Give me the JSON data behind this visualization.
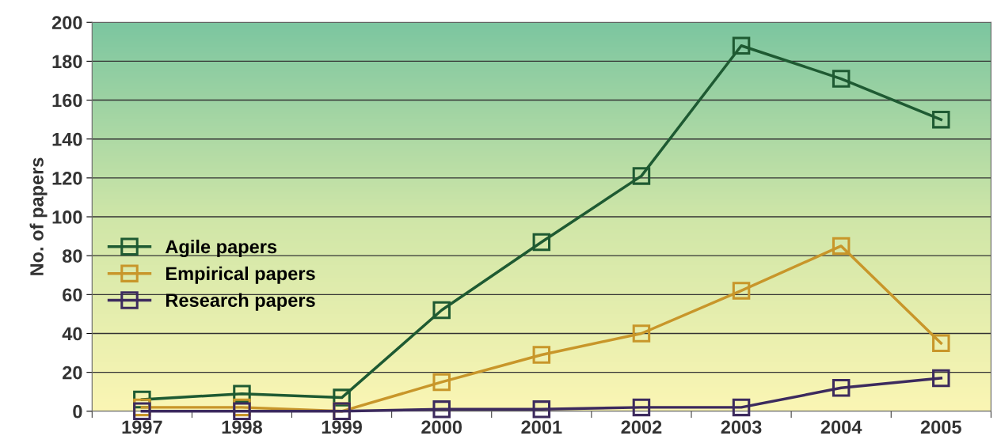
{
  "chart_data": {
    "type": "line",
    "ylabel": "No. of papers",
    "categories": [
      "1997",
      "1998",
      "1999",
      "2000",
      "2001",
      "2002",
      "2003",
      "2004",
      "2005"
    ],
    "series": [
      {
        "name": "Agile papers",
        "color": "#1e5a32",
        "values": [
          6,
          9,
          7,
          52,
          87,
          121,
          188,
          171,
          150
        ]
      },
      {
        "name": "Empirical papers",
        "color": "#c8962a",
        "values": [
          2,
          2,
          0,
          15,
          29,
          40,
          62,
          85,
          35
        ]
      },
      {
        "name": "Research papers",
        "color": "#3c2a5e",
        "values": [
          0,
          0,
          0,
          1,
          1,
          2,
          2,
          12,
          17
        ]
      }
    ],
    "ylim": [
      0,
      200
    ],
    "yticks": [
      0,
      20,
      40,
      60,
      80,
      100,
      120,
      140,
      160,
      180,
      200
    ],
    "grid": "y",
    "legend": "center left",
    "marker": "square",
    "line_style": "solid"
  }
}
